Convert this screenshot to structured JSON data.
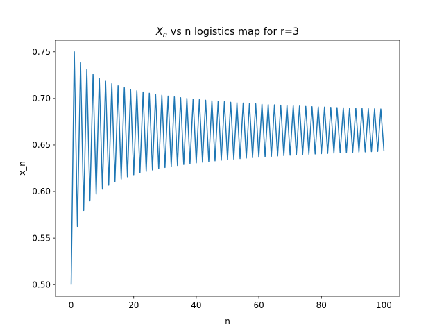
{
  "chart_data": {
    "type": "line",
    "title_main": "X",
    "title_sub": "n",
    "title_rest": " vs n logistics map for r=3",
    "xlabel": "n",
    "ylabel": "x_n",
    "xlim": [
      -5,
      105
    ],
    "ylim": [
      0.4875,
      0.7625
    ],
    "x_ticks": [
      0,
      20,
      40,
      60,
      80,
      100
    ],
    "y_ticks": [
      "0.50",
      "0.55",
      "0.60",
      "0.65",
      "0.70",
      "0.75"
    ],
    "series": [
      {
        "r": 3,
        "x0": 0.5,
        "n_start": 0,
        "n_end": 100,
        "color": "#1f77b4"
      }
    ],
    "grid": false
  }
}
